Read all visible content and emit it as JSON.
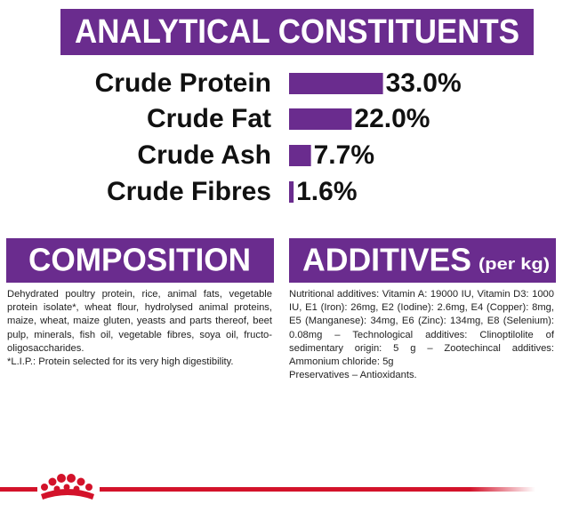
{
  "header": {
    "title": "ANALYTICAL CONSTITUENTS"
  },
  "chart_data": {
    "type": "bar",
    "orientation": "horizontal",
    "color": "#6a2c8e",
    "categories": [
      "Crude Protein",
      "Crude Fat",
      "Crude Ash",
      "Crude Fibres"
    ],
    "values": [
      33.0,
      22.0,
      7.7,
      1.6
    ],
    "value_labels": [
      "33.0%",
      "22.0%",
      "7.7%",
      "1.6%"
    ]
  },
  "composition": {
    "title": "COMPOSITION",
    "text": "Dehydrated poultry protein, rice, animal fats, vegetable protein isolate*, wheat flour, hydrolysed animal proteins, maize, wheat, maize gluten, yeasts and parts thereof, beet pulp, minerals, fish oil, vegetable fibres, soya oil, fructo-oligosaccharides.",
    "footnote": "*L.I.P.: Protein selected for its very high digestibility."
  },
  "additives": {
    "title": "ADDITIVES",
    "subtitle": "(per kg)",
    "text": "Nutritional additives: Vitamin A: 19000 IU, Vitamin D3: 1000 IU, E1 (Iron): 26mg, E2 (Iodine): 2.6mg, E4 (Copper): 8mg, E5 (Manganese): 34mg, E6 (Zinc): 134mg, E8 (Selenium): 0.08mg – Technological additives: Clinoptilolite of sedimentary origin: 5 g – Zootechincal additives: Ammonium chloride: 5g",
    "footnote": "Preservatives – Antioxidants."
  }
}
